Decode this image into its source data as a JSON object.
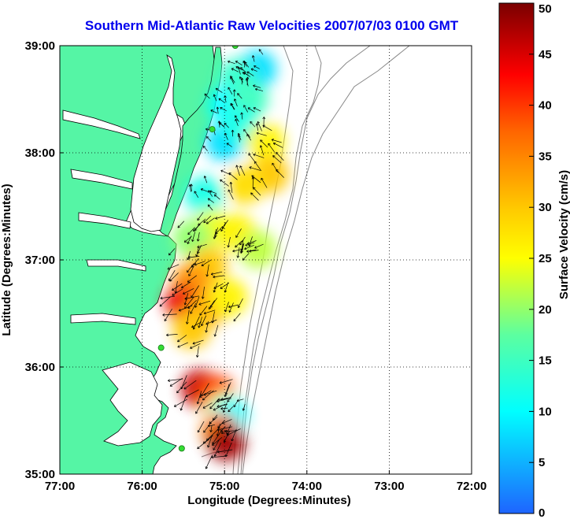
{
  "chart_data": {
    "type": "heatmap",
    "title": "Southern Mid-Atlantic Raw Velocities 2007/07/03 0100 GMT",
    "xlabel": "Longitude (Degrees:Minutes)",
    "ylabel": "Latitude (Degrees:Minutes)",
    "colorbar_label": "Surface Velocity (cm/s)",
    "xlim": [
      -77,
      -72
    ],
    "ylim": [
      35,
      39
    ],
    "x_ticks": [
      {
        "value": -77,
        "label": "77:00"
      },
      {
        "value": -76,
        "label": "76:00"
      },
      {
        "value": -75,
        "label": "75:00"
      },
      {
        "value": -74,
        "label": "74:00"
      },
      {
        "value": -73,
        "label": "73:00"
      },
      {
        "value": -72,
        "label": "72:00"
      }
    ],
    "y_ticks": [
      {
        "value": 35,
        "label": "35:00"
      },
      {
        "value": 36,
        "label": "36:00"
      },
      {
        "value": 37,
        "label": "37:00"
      },
      {
        "value": 38,
        "label": "38:00"
      },
      {
        "value": 39,
        "label": "39:00"
      }
    ],
    "colorbar": {
      "min": 0,
      "max": 50,
      "ticks": [
        {
          "value": 0,
          "label": "0"
        },
        {
          "value": 5,
          "label": "5"
        },
        {
          "value": 10,
          "label": "10"
        },
        {
          "value": 15,
          "label": "15"
        },
        {
          "value": 20,
          "label": "20"
        },
        {
          "value": 25,
          "label": "25"
        },
        {
          "value": 30,
          "label": "30"
        },
        {
          "value": 35,
          "label": "35"
        },
        {
          "value": 40,
          "label": "40"
        },
        {
          "value": 45,
          "label": "45"
        },
        {
          "value": 50,
          "label": "50"
        }
      ]
    },
    "grid": true,
    "colors": {
      "land": "#55f5a5",
      "title": "#0000ee",
      "bathymetry": "#888888",
      "stations": "#33dd33"
    },
    "stations": [
      {
        "lon": -74.87,
        "lat": 39.0
      },
      {
        "lon": -75.15,
        "lat": 38.22
      },
      {
        "lon": -75.77,
        "lat": 36.18
      },
      {
        "lon": -75.52,
        "lat": 35.24
      }
    ],
    "velocity_regions": [
      {
        "lon": -74.6,
        "lat": 38.78,
        "speed": 8
      },
      {
        "lon": -74.85,
        "lat": 38.7,
        "speed": 14
      },
      {
        "lon": -74.98,
        "lat": 38.45,
        "speed": 10
      },
      {
        "lon": -74.7,
        "lat": 38.5,
        "speed": 15
      },
      {
        "lon": -75.0,
        "lat": 38.1,
        "speed": 8
      },
      {
        "lon": -74.8,
        "lat": 38.25,
        "speed": 12
      },
      {
        "lon": -74.5,
        "lat": 38.1,
        "speed": 26
      },
      {
        "lon": -74.45,
        "lat": 37.8,
        "speed": 30
      },
      {
        "lon": -74.75,
        "lat": 37.7,
        "speed": 28
      },
      {
        "lon": -75.25,
        "lat": 37.6,
        "speed": 12
      },
      {
        "lon": -75.15,
        "lat": 37.3,
        "speed": 24
      },
      {
        "lon": -74.85,
        "lat": 37.25,
        "speed": 26
      },
      {
        "lon": -74.6,
        "lat": 37.1,
        "speed": 22
      },
      {
        "lon": -75.4,
        "lat": 37.2,
        "speed": 20
      },
      {
        "lon": -75.2,
        "lat": 36.95,
        "speed": 30
      },
      {
        "lon": -75.4,
        "lat": 36.8,
        "speed": 34
      },
      {
        "lon": -75.5,
        "lat": 36.6,
        "speed": 44
      },
      {
        "lon": -75.2,
        "lat": 36.55,
        "speed": 32
      },
      {
        "lon": -74.95,
        "lat": 36.65,
        "speed": 26
      },
      {
        "lon": -75.4,
        "lat": 36.35,
        "speed": 30
      },
      {
        "lon": -75.3,
        "lat": 35.8,
        "speed": 46
      },
      {
        "lon": -75.1,
        "lat": 35.75,
        "speed": 40
      },
      {
        "lon": -75.0,
        "lat": 35.6,
        "speed": 26
      },
      {
        "lon": -74.95,
        "lat": 35.55,
        "speed": 10
      },
      {
        "lon": -75.05,
        "lat": 35.4,
        "speed": 36
      },
      {
        "lon": -74.98,
        "lat": 35.3,
        "speed": 48
      }
    ]
  }
}
